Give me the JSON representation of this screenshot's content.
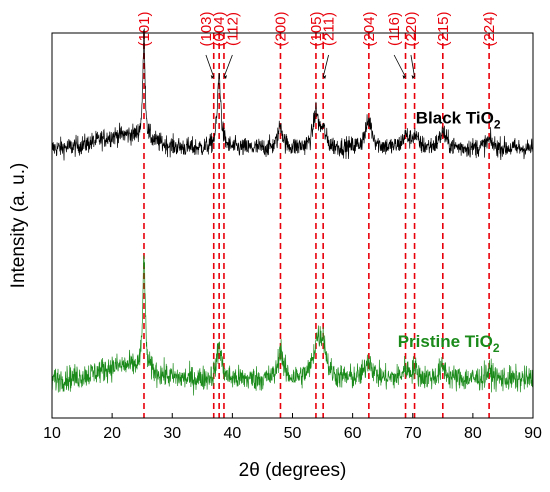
{
  "chart_data": {
    "type": "line",
    "title": "",
    "xlabel": "2θ (degrees)",
    "ylabel": "Intensity (a. u.)",
    "xlim": [
      10,
      90
    ],
    "xticks": [
      10,
      20,
      30,
      40,
      50,
      60,
      70,
      80,
      90
    ],
    "ylim": [
      0,
      1
    ],
    "yticks_shown": false,
    "grid": false,
    "reference_lines": {
      "color": "#e8000b",
      "style": "dashed",
      "positions": [
        25.3,
        36.9,
        37.8,
        38.6,
        48.0,
        53.9,
        55.1,
        62.7,
        68.8,
        70.3,
        75.0,
        82.7
      ],
      "labels": [
        "(101)",
        "(103)",
        "(004)",
        "(112)",
        "(200)",
        "(105)",
        "(211)",
        "(204)",
        "(116)",
        "(220)",
        "(215)",
        "(224)"
      ],
      "label_positions": [
        25.3,
        35.6,
        37.8,
        40.0,
        48.0,
        53.9,
        56.0,
        62.7,
        66.9,
        69.7,
        75.0,
        82.7
      ]
    },
    "series": [
      {
        "name": "Black TiO2",
        "color": "#000000",
        "baseline": 0.7,
        "noise": 0.022,
        "peaks": [
          {
            "x": 25.3,
            "height": 0.28,
            "width": 0.22
          },
          {
            "x": 37.8,
            "height": 0.19,
            "width": 0.35
          },
          {
            "x": 48.0,
            "height": 0.06,
            "width": 0.45
          },
          {
            "x": 53.9,
            "height": 0.09,
            "width": 0.55
          },
          {
            "x": 55.1,
            "height": 0.04,
            "width": 0.5
          },
          {
            "x": 62.7,
            "height": 0.07,
            "width": 0.7
          },
          {
            "x": 68.8,
            "height": 0.03,
            "width": 0.6
          },
          {
            "x": 70.3,
            "height": 0.03,
            "width": 0.6
          },
          {
            "x": 75.0,
            "height": 0.04,
            "width": 0.7
          },
          {
            "x": 82.7,
            "height": 0.02,
            "width": 0.7
          }
        ]
      },
      {
        "name": "Pristine TiO2",
        "color": "#1a8a1a",
        "baseline": 0.1,
        "noise": 0.028,
        "peaks": [
          {
            "x": 25.3,
            "height": 0.31,
            "width": 0.22
          },
          {
            "x": 37.8,
            "height": 0.09,
            "width": 0.45
          },
          {
            "x": 48.0,
            "height": 0.08,
            "width": 0.45
          },
          {
            "x": 54.1,
            "height": 0.09,
            "width": 0.75
          },
          {
            "x": 55.1,
            "height": 0.08,
            "width": 0.6
          },
          {
            "x": 62.7,
            "height": 0.05,
            "width": 0.7
          },
          {
            "x": 68.8,
            "height": 0.025,
            "width": 0.6
          },
          {
            "x": 70.3,
            "height": 0.025,
            "width": 0.6
          },
          {
            "x": 75.0,
            "height": 0.03,
            "width": 0.7
          },
          {
            "x": 82.7,
            "height": 0.02,
            "width": 0.7
          }
        ]
      }
    ],
    "series_labels": [
      {
        "main": "Black TiO",
        "sub": "2",
        "color": "#000000",
        "x": 70.5,
        "y": 0.765
      },
      {
        "main": "Pristine TiO",
        "sub": "2",
        "color": "#1a8a1a",
        "x": 67.5,
        "y": 0.185
      }
    ]
  }
}
